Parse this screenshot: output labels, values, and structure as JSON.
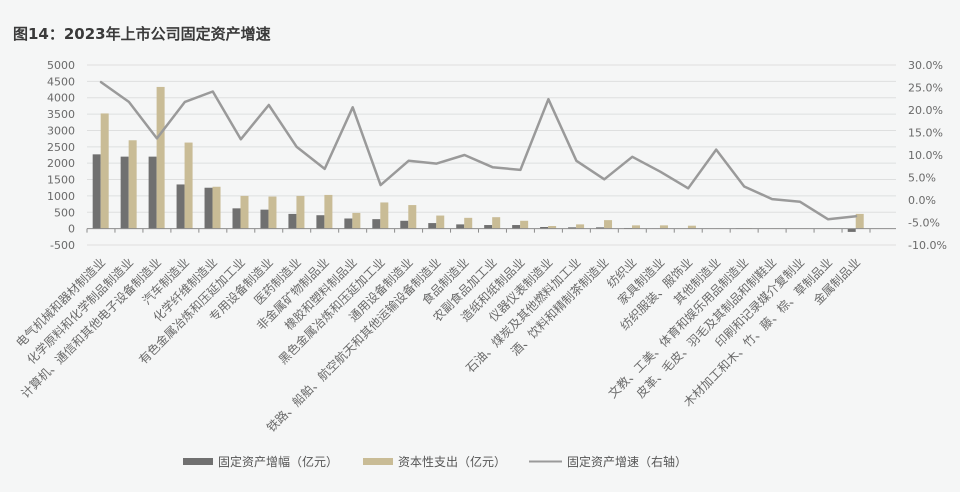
{
  "figure": {
    "title": "图14：2023年上市公司固定资产增速"
  },
  "legend": {
    "items": [
      {
        "label": "固定资产增幅（亿元）",
        "type": "bar",
        "color": "#707070"
      },
      {
        "label": "资本性支出（亿元）",
        "type": "bar",
        "color": "#c9bc96"
      },
      {
        "label": "固定资产增速（右轴）",
        "type": "line",
        "color": "#9a9a9a"
      }
    ]
  },
  "colors": {
    "background": "#f5f6f6",
    "grid": "#dedfdf",
    "axis": "#8c8c8c",
    "tick_text": "#6a6a6a"
  },
  "chart_data": {
    "type": "bar",
    "title": "图14：2023年上市公司固定资产增速",
    "xlabel": "",
    "ylabel": "",
    "y2label": "",
    "categories": [
      "电气机械和器材制造业",
      "化学原料和化学制品制造业",
      "计算机、通信和其他电子设备制造业",
      "汽车制造业",
      "化学纤维制造业",
      "有色金属冶炼和压延加工业",
      "专用设备制造业",
      "医药制造业",
      "非金属矿物制品业",
      "橡胶和塑料制品业",
      "黑色金属冶炼和压延加工业",
      "通用设备制造业",
      "铁路、船舶、航空航天和其他运输设备制造业",
      "食品制造业",
      "农副食品加工业",
      "造纸和纸制品业",
      "仪器仪表制造业",
      "石油、煤炭及其他燃料加工业",
      "酒、饮料和精制茶制造业",
      "纺织业",
      "家具制造业",
      "纺织服装、服饰业",
      "其他制造业",
      "文教、工美、体育和娱乐用品制造业",
      "皮革、毛皮、羽毛及其制品和制鞋业",
      "印刷和记录媒介复制业",
      "木材加工和木、竹、藤、棕、草制品业",
      "金属制品业"
    ],
    "series": [
      {
        "name": "固定资产增幅（亿元）",
        "type": "bar",
        "axis": "left",
        "color": "#707070",
        "values": [
          2270,
          2200,
          2200,
          1350,
          1250,
          620,
          580,
          450,
          410,
          310,
          290,
          240,
          170,
          130,
          110,
          110,
          50,
          40,
          40,
          20,
          5,
          0,
          0,
          10,
          0,
          0,
          0,
          -100
        ]
      },
      {
        "name": "资本性支出（亿元）",
        "type": "bar",
        "axis": "left",
        "color": "#c9bc96",
        "values": [
          3520,
          2700,
          4330,
          2630,
          1280,
          1000,
          980,
          1000,
          1030,
          480,
          800,
          720,
          400,
          330,
          350,
          240,
          80,
          130,
          260,
          100,
          100,
          90,
          5,
          15,
          5,
          5,
          5,
          450
        ]
      },
      {
        "name": "固定资产增速（右轴）",
        "type": "line",
        "axis": "right",
        "unit": "%",
        "color": "#9a9a9a",
        "values": [
          26.2,
          21.8,
          13.7,
          21.8,
          24.1,
          13.5,
          21.1,
          11.8,
          6.9,
          20.6,
          3.3,
          8.7,
          8.1,
          10.0,
          7.3,
          6.7,
          22.4,
          8.7,
          4.6,
          9.6,
          6.3,
          2.6,
          11.2,
          3.0,
          0.2,
          -0.4,
          -4.3,
          -3.6
        ]
      }
    ],
    "ylim": [
      -500,
      5000
    ],
    "yticks": [
      5000,
      4500,
      4000,
      3500,
      3000,
      2500,
      2000,
      1500,
      1000,
      500,
      0,
      -500
    ],
    "ytick_labels": [
      "5000",
      "4500",
      "4000",
      "3500",
      "3000",
      "2500",
      "2000",
      "1500",
      "1000",
      "500",
      "0",
      "-500"
    ],
    "y2lim": [
      -10,
      30
    ],
    "y2ticks": [
      30,
      25,
      20,
      15,
      10,
      5,
      0,
      -5,
      -10
    ],
    "y2tick_labels": [
      "30.0%",
      "25.0%",
      "20.0%",
      "15.0%",
      "10.0%",
      "5.0%",
      "0.0%",
      "-5.0%",
      "-10.0%"
    ],
    "grid": true,
    "xtick_rotation": -45,
    "legend_position": "bottom"
  }
}
